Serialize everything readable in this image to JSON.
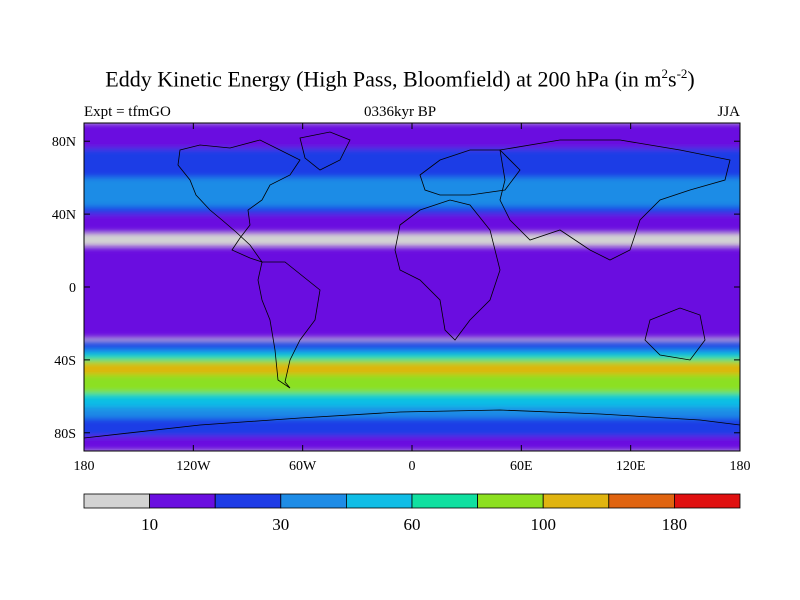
{
  "figure": {
    "title": "Eddy Kinetic Energy (High Pass, Bloomfield) at 200 hPa (in m",
    "title_sup1": "2",
    "title_mid": "s",
    "title_sup2": "-2",
    "title_end": ")",
    "left_label": "Expt = tfmGO",
    "center_label": "0336kyr BP",
    "right_label": "JJA"
  },
  "chart_data": {
    "type": "heatmap",
    "xlabel": "",
    "ylabel": "",
    "x_ticks": [
      {
        "value": -180,
        "label": "180"
      },
      {
        "value": -120,
        "label": "120W"
      },
      {
        "value": -60,
        "label": "60W"
      },
      {
        "value": 0,
        "label": "0"
      },
      {
        "value": 60,
        "label": "60E"
      },
      {
        "value": 120,
        "label": "120E"
      },
      {
        "value": 180,
        "label": "180"
      }
    ],
    "y_ticks": [
      {
        "value": 80,
        "label": "80N"
      },
      {
        "value": 40,
        "label": "40N"
      },
      {
        "value": 0,
        "label": "0"
      },
      {
        "value": -40,
        "label": "40S"
      },
      {
        "value": -80,
        "label": "80S"
      }
    ],
    "xlim": [
      -180,
      180
    ],
    "ylim": [
      -90,
      90
    ],
    "colorbar": {
      "colors": [
        "#d3d3d3",
        "#6a0fe0",
        "#1e3ce6",
        "#1e8ce6",
        "#10bde6",
        "#10e0a0",
        "#8ce020",
        "#e0b410",
        "#e06410",
        "#e01010"
      ],
      "labels": [
        {
          "boundary": 1,
          "label": "10"
        },
        {
          "boundary": 3,
          "label": "30"
        },
        {
          "boundary": 5,
          "label": "60"
        },
        {
          "boundary": 7,
          "label": "100"
        },
        {
          "boundary": 9,
          "label": "180"
        }
      ]
    },
    "fields": [
      {
        "level": 1,
        "color": "#6a0fe0",
        "bands": [
          [
            -90,
            -72
          ],
          [
            -28,
            22
          ],
          [
            30,
            90
          ]
        ]
      },
      {
        "level": 2,
        "color": "#1e3ce6",
        "bands": [
          [
            -82,
            -30
          ],
          [
            40,
            76
          ]
        ]
      },
      {
        "level": 3,
        "color": "#1e8ce6",
        "bands": [
          [
            -72,
            -34
          ],
          [
            44,
            60
          ]
        ]
      },
      {
        "level": 4,
        "color": "#10bde6",
        "bands": [
          [
            -66,
            -36
          ]
        ]
      },
      {
        "level": 5,
        "color": "#10e0a0",
        "bands": [
          [
            -60,
            -38
          ]
        ]
      },
      {
        "level": 6,
        "color": "#8ce020",
        "bands": [
          [
            -58,
            -40
          ]
        ]
      },
      {
        "level": 7,
        "color": "#e0b410",
        "bands": [
          [
            -48,
            -42
          ]
        ]
      }
    ]
  }
}
